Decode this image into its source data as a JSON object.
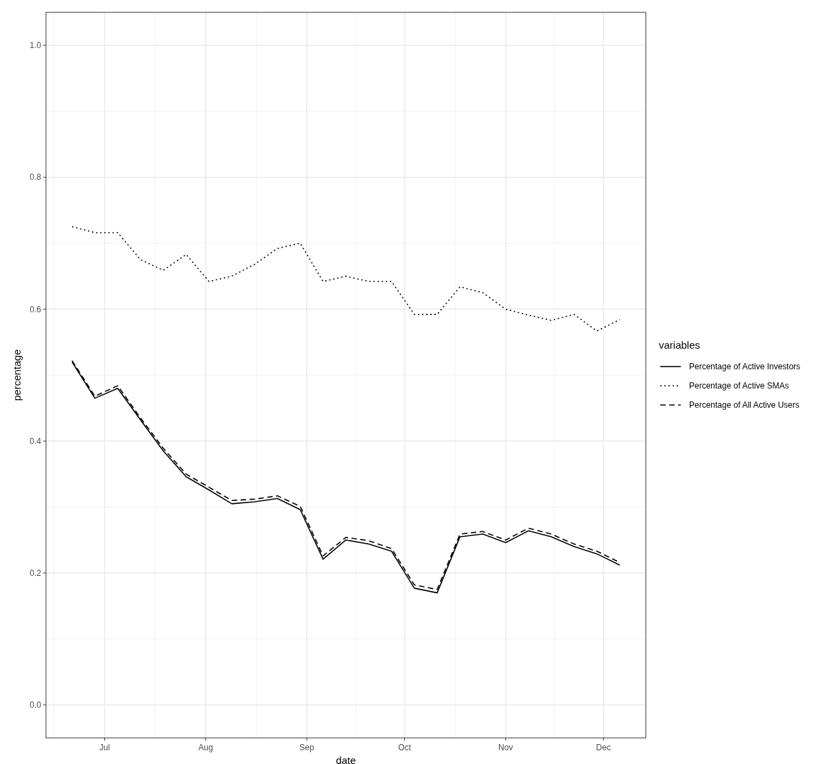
{
  "chart_data": {
    "type": "line",
    "xlabel": "date",
    "ylabel": "percentage",
    "legend_title": "variables",
    "legend": "right",
    "grid": true,
    "x": [
      "--06-21",
      "--06-28",
      "--07-05",
      "--07-12",
      "--07-19",
      "--07-26",
      "--08-02",
      "--08-09",
      "--08-16",
      "--08-23",
      "--08-30",
      "--09-06",
      "--09-13",
      "--09-20",
      "--09-27",
      "--10-04",
      "--10-11",
      "--10-18",
      "--10-25",
      "--11-01",
      "--11-08",
      "--11-15",
      "--11-22",
      "--11-29",
      "--12-06"
    ],
    "xlim": [
      "--06-13",
      "--12-14"
    ],
    "xticks": [
      {
        "value": "--07-01",
        "label": "Jul"
      },
      {
        "value": "--08-01",
        "label": "Aug"
      },
      {
        "value": "--09-01",
        "label": "Sep"
      },
      {
        "value": "--10-01",
        "label": "Oct"
      },
      {
        "value": "--11-01",
        "label": "Nov"
      },
      {
        "value": "--12-01",
        "label": "Dec"
      }
    ],
    "ylim": [
      -0.05,
      1.05
    ],
    "yticks": [
      {
        "value": 0,
        "label": "0.0"
      },
      {
        "value": 0.2,
        "label": "0.2"
      },
      {
        "value": 0.4,
        "label": "0.4"
      },
      {
        "value": 0.6,
        "label": "0.6"
      },
      {
        "value": 0.8,
        "label": "0.8"
      },
      {
        "value": 1,
        "label": "1.0"
      }
    ],
    "series": [
      {
        "name": "Percentage of Active Investors",
        "color": "#000000",
        "line_style": "solid",
        "values": [
          0.52,
          0.465,
          0.48,
          0.432,
          0.385,
          0.346,
          0.326,
          0.305,
          0.308,
          0.313,
          0.296,
          0.221,
          0.25,
          0.244,
          0.233,
          0.177,
          0.17,
          0.255,
          0.259,
          0.246,
          0.264,
          0.255,
          0.24,
          0.229,
          0.212
        ]
      },
      {
        "name": "Percentage of Active SMAs",
        "color": "#000000",
        "line_style": "dotted",
        "values": [
          0.725,
          0.716,
          0.716,
          0.675,
          0.659,
          0.683,
          0.642,
          0.65,
          0.668,
          0.692,
          0.7,
          0.642,
          0.65,
          0.642,
          0.642,
          0.592,
          0.592,
          0.634,
          0.625,
          0.6,
          0.591,
          0.583,
          0.592,
          0.567,
          0.584
        ]
      },
      {
        "name": "Percentage of All Active Users",
        "color": "#000000",
        "line_style": "dashed",
        "values": [
          0.522,
          0.468,
          0.484,
          0.435,
          0.389,
          0.35,
          0.33,
          0.31,
          0.312,
          0.317,
          0.301,
          0.226,
          0.254,
          0.249,
          0.237,
          0.182,
          0.175,
          0.259,
          0.263,
          0.25,
          0.268,
          0.259,
          0.244,
          0.233,
          0.216
        ]
      }
    ]
  }
}
